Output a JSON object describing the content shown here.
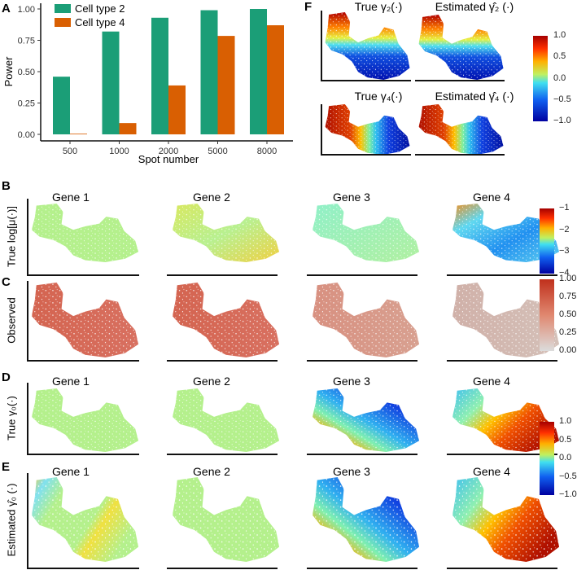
{
  "panels": {
    "A": "A",
    "B": "B",
    "C": "C",
    "D": "D",
    "E": "E",
    "F": "F"
  },
  "chart_data": {
    "type": "bar",
    "title": "",
    "xlabel": "Spot number",
    "ylabel": "Power",
    "categories": [
      "500",
      "1000",
      "2000",
      "5000",
      "8000"
    ],
    "series": [
      {
        "name": "Cell type 2",
        "color": "#1b9e77",
        "values": [
          0.46,
          0.82,
          0.93,
          0.99,
          1.0
        ]
      },
      {
        "name": "Cell type 4",
        "color": "#d95f02",
        "values": [
          0.005,
          0.09,
          0.39,
          0.785,
          0.87
        ]
      }
    ],
    "ylim": [
      0,
      1
    ],
    "yticks": [
      "0.00",
      "0.25",
      "0.50",
      "0.75",
      "1.00"
    ],
    "legend": "top-left",
    "grid": false
  },
  "F": {
    "titles": [
      "True γ₂(·)",
      "Estimated γ̂₂ (·)",
      "True γ₄(·)",
      "Estimated γ̂₄ (·)"
    ],
    "colorbar": [
      "1.0",
      "0.5",
      "0.0",
      "−0.5",
      "−1.0"
    ]
  },
  "genes": [
    "Gene 1",
    "Gene 2",
    "Gene 3",
    "Gene 4"
  ],
  "rows": {
    "B": {
      "ylabel": "True log[μ(·)]",
      "colorbar": [
        "−1",
        "−2",
        "−3",
        "−4"
      ]
    },
    "C": {
      "ylabel": "Observed",
      "colorbar": [
        "1.00",
        "0.75",
        "0.50",
        "0.25",
        "0.00"
      ]
    },
    "D": {
      "ylabel": "True γ₀(·)",
      "colorbar": [
        "1.0",
        "0.5",
        "0.0",
        "−0.5",
        "−1.0"
      ]
    },
    "E": {
      "ylabel": "Estimated γ̂₀ (·)"
    }
  }
}
